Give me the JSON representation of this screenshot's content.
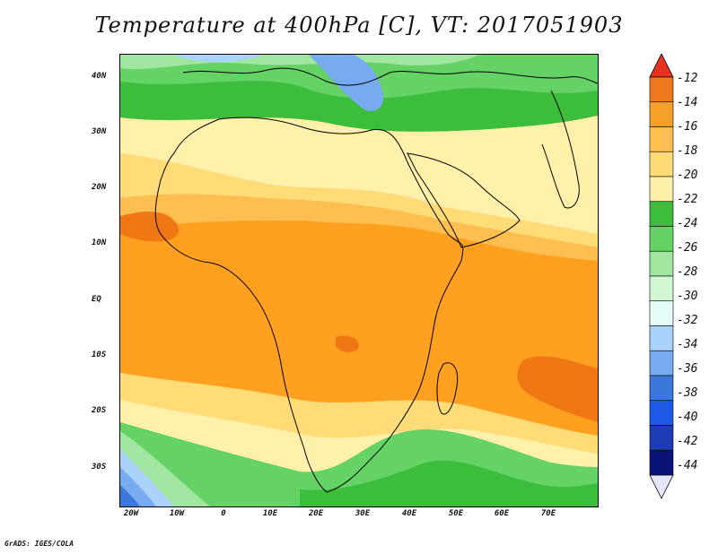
{
  "title": "Temperature at 400hPa [C], VT: 2017051903",
  "credit": "GrADS: IGES/COLA",
  "map": {
    "lat_labels": [
      "40N",
      "30N",
      "20N",
      "10N",
      "EQ",
      "10S",
      "20S",
      "30S"
    ],
    "lon_labels": [
      "20W",
      "10W",
      "0",
      "10E",
      "20E",
      "30E",
      "40E",
      "50E",
      "60E",
      "70E"
    ],
    "lon_range": [
      -23,
      80
    ],
    "lat_range": [
      -36,
      45
    ],
    "contour_colors": {
      "lt_-40": "#1e3cb4",
      "-40_-36": "#3c78dc",
      "-36_-32": "#78aaf0",
      "-32_-30": "#aad2fa",
      "-30_-28": "#e6fafa",
      "-28_-26": "#a0e6a0",
      "-26_-24": "#64d264",
      "-24_-22": "#3cbe3c",
      "-22_-20": "#fff0aa",
      "-20_-18": "#ffdc78",
      "-18_-16": "#ffbe50",
      "-16_-14": "#ffa020",
      "-14_-12": "#f07814"
    }
  },
  "colorbar": {
    "labels": [
      "-12",
      "-14",
      "-16",
      "-18",
      "-20",
      "-22",
      "-24",
      "-26",
      "-28",
      "-30",
      "-32",
      "-34",
      "-36",
      "-38",
      "-40",
      "-42",
      "-44"
    ],
    "colors": [
      "#e6321e",
      "#f0781e",
      "#f5a028",
      "#ffbe50",
      "#ffdc78",
      "#fff0aa",
      "#3cbe3c",
      "#64d264",
      "#a0e6a0",
      "#d2f5d2",
      "#e6fafa",
      "#aad2fa",
      "#78aaf0",
      "#3c78dc",
      "#1e5ae6",
      "#1e3cb4",
      "#0a1478",
      "#e6e6fa"
    ]
  }
}
